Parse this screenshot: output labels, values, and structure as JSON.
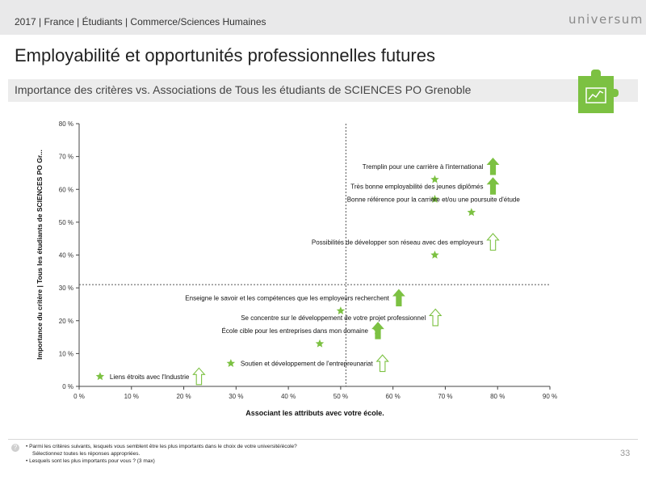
{
  "header": {
    "breadcrumb": "2017 | France | Étudiants | Commerce/Sciences Humaines",
    "logo": "universum"
  },
  "page": {
    "title": "Employabilité et opportunités professionnelles futures",
    "subtitle": "Importance des critères vs. Associations de Tous les étudiants de SCIENCES PO Grenoble",
    "page_number": "33"
  },
  "badge": {
    "icon": "trend-chart-icon",
    "color": "#7cc142"
  },
  "footnotes": {
    "line1": "•  Parmi les critères suivants, lesquels vous semblent être les plus importants dans le choix de votre université/école?",
    "line2": "Sélectionnez toutes les réponses appropriées.",
    "line3": "•  Lesquels sont les plus importants pour vous ? (3 max)"
  },
  "chart_data": {
    "type": "scatter",
    "xlabel": "Associant les attributs avec votre école.",
    "ylabel": "Importance du critère | Tous les étudiants de SCIENCES PO Gr...",
    "xlim": [
      0,
      90
    ],
    "ylim": [
      0,
      80
    ],
    "x_ticks": [
      "0 %",
      "10 %",
      "20 %",
      "30 %",
      "40 %",
      "50 %",
      "60 %",
      "70 %",
      "80 %",
      "90 %"
    ],
    "y_ticks": [
      "0 %",
      "10 %",
      "20 %",
      "30 %",
      "40 %",
      "50 %",
      "60 %",
      "70 %",
      "80 %"
    ],
    "ref_lines": {
      "x": 51,
      "y": 31
    },
    "marker_color": "#7cc142",
    "arrow_color": "#7cc142",
    "grid": false,
    "points": [
      {
        "label": "Tremplin pour une carrière à l'international",
        "x": 68,
        "y": 63,
        "arrow": "filled"
      },
      {
        "label": "Très bonne employabilité des jeunes diplômés",
        "x": 68,
        "y": 57,
        "arrow": "filled"
      },
      {
        "label": "Bonne référence pour la carrière et/ou une poursuite d'étude",
        "x": 75,
        "y": 53,
        "arrow": "none"
      },
      {
        "label": "Possibilités de développer son réseau avec des employeurs",
        "x": 68,
        "y": 40,
        "arrow": "outline"
      },
      {
        "label": "Enseigne le savoir et les compétences que les employeurs recherchent",
        "x": 50,
        "y": 23,
        "arrow": "filled"
      },
      {
        "label": "Se concentre sur le développement de votre projet professionnel",
        "x": 57,
        "y": 17,
        "arrow": "outline"
      },
      {
        "label": "École cible pour les entreprises dans mon domaine",
        "x": 46,
        "y": 13,
        "arrow": "filled"
      },
      {
        "label": "Soutien et développement de l'entrepreunariat",
        "x": 29,
        "y": 7,
        "arrow": "outline"
      },
      {
        "label": "Liens étroits avec l'Industrie",
        "x": 4,
        "y": 3,
        "arrow": "outline"
      }
    ]
  }
}
